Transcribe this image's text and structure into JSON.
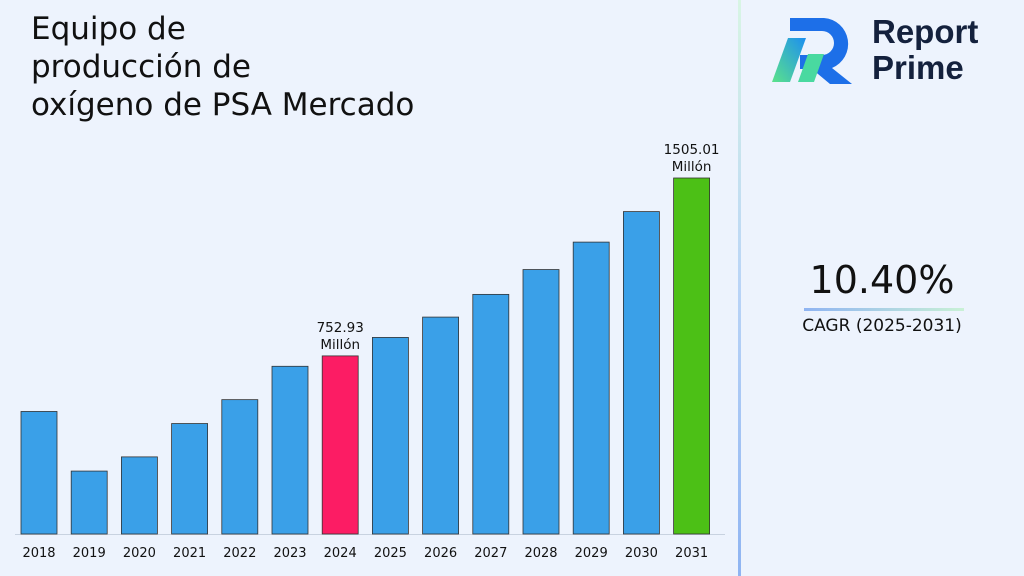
{
  "title": "Equipo de\nproducción de\noxígeno de PSA Mercado",
  "logo": {
    "line1": "Report",
    "line2": "Prime"
  },
  "cagr": {
    "value": "10.40%",
    "label": "CAGR (2025-2031)"
  },
  "colors": {
    "bar": "#3aa0e8",
    "highlight_2024": "#fc1c64",
    "highlight_2031": "#4cc016",
    "background": "#edf3fd"
  },
  "chart_data": {
    "type": "bar",
    "title": "Equipo de producción de oxígeno de PSA Mercado",
    "categories": [
      "2018",
      "2019",
      "2020",
      "2021",
      "2022",
      "2023",
      "2024",
      "2025",
      "2026",
      "2027",
      "2028",
      "2029",
      "2030",
      "2031"
    ],
    "values": [
      518,
      266,
      326,
      467,
      568,
      709,
      752.93,
      831,
      917,
      1013,
      1118,
      1234,
      1363,
      1505.01
    ],
    "annotations": [
      {
        "category": "2024",
        "text": [
          "752.93",
          "Millón"
        ]
      },
      {
        "category": "2031",
        "text": [
          "1505.01",
          "Millón"
        ]
      }
    ],
    "highlight": {
      "2024": "#fc1c64",
      "2031": "#4cc016"
    },
    "ylim": [
      0,
      1505.01
    ],
    "grid": false,
    "legend": "none"
  }
}
